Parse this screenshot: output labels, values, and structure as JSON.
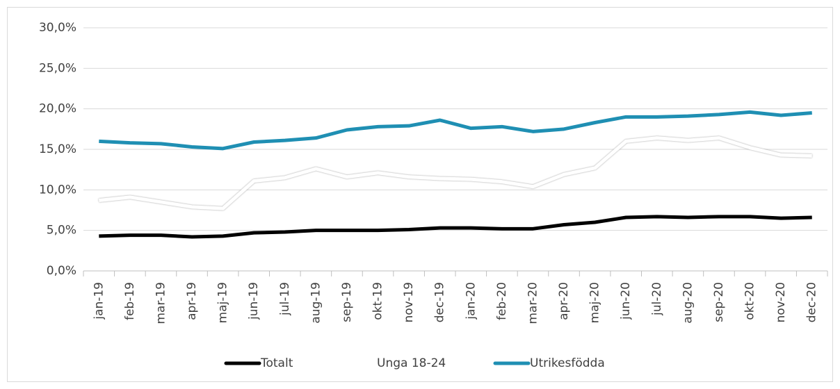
{
  "chart_data": {
    "type": "line",
    "categories": [
      "jan-19",
      "feb-19",
      "mar-19",
      "apr-19",
      "maj-19",
      "jun-19",
      "jul-19",
      "aug-19",
      "sep-19",
      "okt-19",
      "nov-19",
      "dec-19",
      "jan-20",
      "feb-20",
      "mar-20",
      "apr-20",
      "maj-20",
      "jun-20",
      "jul-20",
      "aug-20",
      "sep-20",
      "okt-20",
      "nov-20",
      "dec-20"
    ],
    "series": [
      {
        "name": "Totalt",
        "color": "#000000",
        "values": [
          4.3,
          4.4,
          4.4,
          4.2,
          4.3,
          4.7,
          4.8,
          5.0,
          5.0,
          5.0,
          5.1,
          5.3,
          5.3,
          5.2,
          5.2,
          5.7,
          6.0,
          6.6,
          6.7,
          6.6,
          6.7,
          6.7,
          6.5,
          6.6
        ]
      },
      {
        "name": "Unga 18-24",
        "color": "#ffffff",
        "values": [
          8.7,
          9.1,
          8.5,
          7.9,
          7.7,
          11.1,
          11.5,
          12.6,
          11.6,
          12.1,
          11.6,
          11.4,
          11.3,
          11.0,
          10.4,
          11.9,
          12.7,
          16.0,
          16.4,
          16.1,
          16.4,
          15.2,
          14.3,
          14.2
        ]
      },
      {
        "name": "Utrikesfödda",
        "color": "#1f8fb3",
        "values": [
          16.0,
          15.8,
          15.7,
          15.3,
          15.1,
          15.9,
          16.1,
          16.4,
          17.4,
          17.8,
          17.9,
          18.6,
          17.6,
          17.8,
          17.2,
          17.5,
          18.3,
          19.0,
          19.0,
          19.1,
          19.3,
          19.6,
          19.2,
          19.5
        ]
      }
    ],
    "ylim": [
      0,
      30
    ],
    "yticks": [
      {
        "value": 0,
        "label": "0,0%"
      },
      {
        "value": 5,
        "label": "5,0%"
      },
      {
        "value": 10,
        "label": "10,0%"
      },
      {
        "value": 15,
        "label": "15,0%"
      },
      {
        "value": 20,
        "label": "20,0%"
      },
      {
        "value": 25,
        "label": "25,0%"
      },
      {
        "value": 30,
        "label": "30,0%"
      }
    ],
    "grid": true
  }
}
